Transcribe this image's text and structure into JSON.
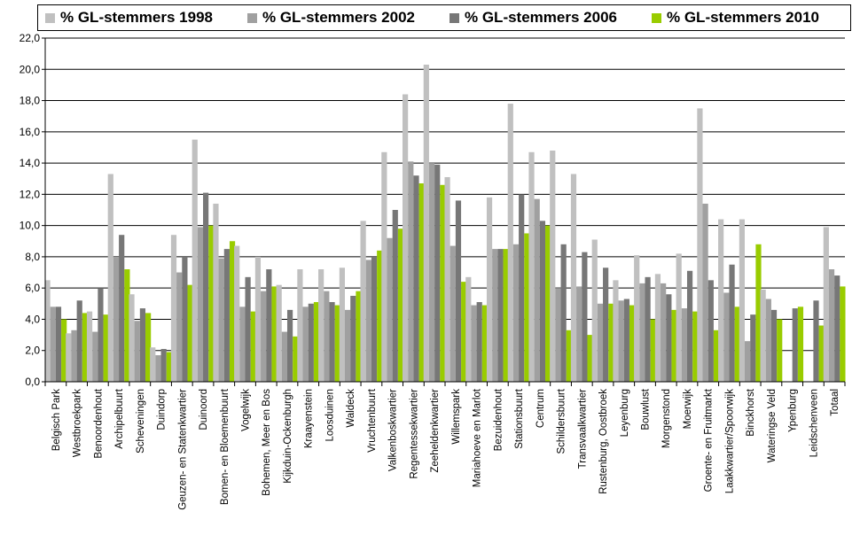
{
  "chart_data": {
    "type": "bar",
    "title": "",
    "xlabel": "",
    "ylabel": "",
    "ylim": [
      0,
      22
    ],
    "y_ticks": [
      "0,0",
      "2,0",
      "4,0",
      "6,0",
      "8,0",
      "10,0",
      "12,0",
      "14,0",
      "16,0",
      "18,0",
      "20,0",
      "22,0"
    ],
    "grid": true,
    "legend_position": "top",
    "categories": [
      "Belgisch Park",
      "Westbroekpark",
      "Benoordenhout",
      "Archipelbuurt",
      "Scheveningen",
      "Duindorp",
      "Geuzen- en Statenkwartier",
      "Duinoord",
      "Bomen- en Bloemenbuurt",
      "Vogelwijk",
      "Bohemen, Meer en Bos",
      "Kijkduin-Ockenburgh",
      "Kraayenstein",
      "Loosduinen",
      "Waldeck",
      "Vruchtenbuurt",
      "Valkenboskwartier",
      "Regentessekwartier",
      "Zeeheldenkwartier",
      "Willemspark",
      "Mariahoeve en Marlot",
      "Bezuidenhout",
      "Stationsbuurt",
      "Centrum",
      "Schildersbuurt",
      "Transvaalkwartier",
      "Rustenburg, Oostbroek",
      "Leyenburg",
      "Bouwlust",
      "Morgenstond",
      "Moerwijk",
      "Groente- en Fruitmarkt",
      "Laakkwartier/Spoorwijk",
      "Binckhorst",
      "Wateringse Veld",
      "Ypenburg",
      "Leidschenveen",
      "Totaal"
    ],
    "series": [
      {
        "name": "% GL-stemmers 1998",
        "color": "#c0c0c0",
        "values": [
          6.5,
          3.1,
          4.5,
          13.3,
          5.6,
          2.2,
          9.4,
          15.5,
          11.4,
          8.7,
          8.0,
          6.2,
          7.2,
          7.2,
          7.3,
          10.3,
          14.7,
          18.4,
          20.3,
          13.1,
          6.7,
          11.8,
          17.8,
          14.7,
          14.8,
          13.3,
          9.1,
          6.5,
          8.1,
          6.9,
          8.2,
          17.5,
          10.4,
          10.4,
          5.9,
          null,
          null,
          9.9
        ]
      },
      {
        "name": "% GL-stemmers 2002",
        "color": "#a0a0a0",
        "values": [
          4.8,
          3.3,
          3.2,
          8.0,
          3.9,
          1.7,
          7.0,
          9.9,
          7.9,
          4.8,
          5.8,
          3.2,
          4.8,
          5.8,
          4.6,
          7.8,
          9.2,
          14.1,
          14.0,
          8.7,
          4.9,
          8.5,
          8.8,
          11.7,
          6.0,
          6.1,
          5.0,
          5.2,
          6.3,
          6.3,
          4.7,
          11.4,
          5.7,
          2.6,
          5.3,
          null,
          null,
          7.2
        ]
      },
      {
        "name": "% GL-stemmers 2006",
        "color": "#777777",
        "values": [
          4.8,
          5.2,
          6.0,
          9.4,
          4.7,
          2.1,
          8.0,
          12.1,
          8.5,
          6.7,
          7.2,
          4.6,
          5.0,
          5.1,
          5.5,
          8.0,
          11.0,
          13.2,
          13.9,
          11.6,
          5.1,
          8.5,
          12.0,
          10.3,
          8.8,
          8.3,
          7.3,
          5.3,
          6.7,
          5.6,
          7.1,
          6.5,
          7.5,
          4.3,
          4.6,
          4.7,
          5.2,
          6.8
        ]
      },
      {
        "name": "% GL-stemmers 2010",
        "color": "#99cc00",
        "values": [
          4.0,
          4.4,
          4.3,
          7.2,
          4.4,
          1.9,
          6.2,
          10.0,
          9.0,
          4.5,
          6.1,
          2.9,
          5.1,
          4.9,
          5.8,
          8.4,
          9.8,
          12.7,
          12.6,
          6.4,
          4.9,
          8.5,
          9.5,
          10.0,
          3.3,
          3.0,
          5.0,
          4.9,
          4.0,
          4.6,
          4.5,
          3.3,
          4.8,
          8.8,
          4.0,
          4.8,
          3.6,
          6.1
        ]
      }
    ]
  }
}
